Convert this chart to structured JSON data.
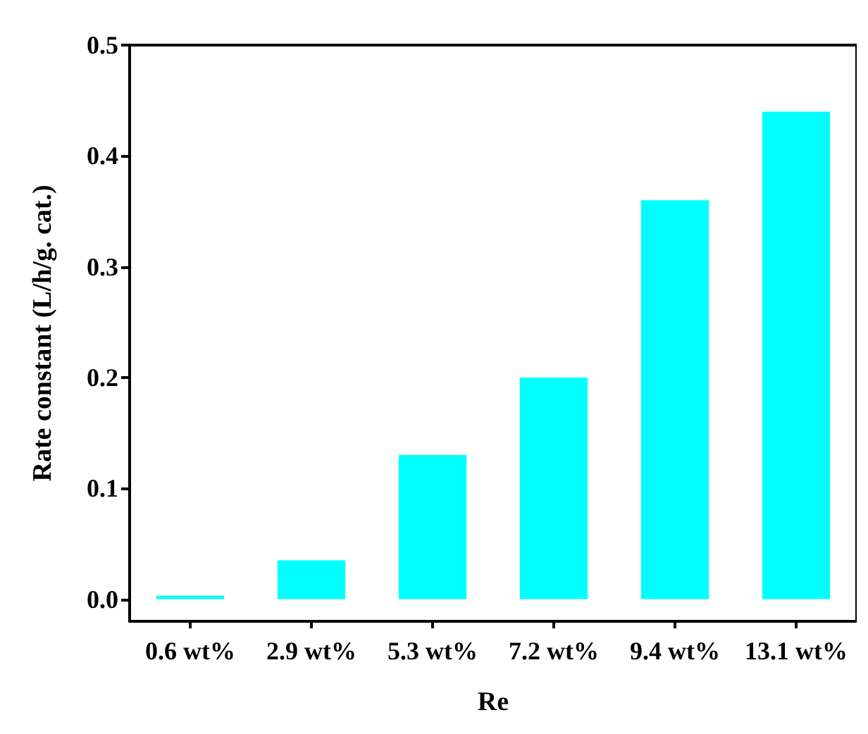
{
  "chart_data": {
    "type": "bar",
    "xlabel": "Re",
    "ylabel": "Rate constant (L/h/g. cat.)",
    "categories": [
      "0.6 wt%",
      "2.9 wt%",
      "5.3 wt%",
      "7.2 wt%",
      "9.4 wt%",
      "13.1 wt%"
    ],
    "values": [
      0.003,
      0.035,
      0.13,
      0.2,
      0.36,
      0.44
    ],
    "color": "#00ffff",
    "ylim": [
      -0.02,
      0.5
    ],
    "yticks": [
      {
        "value": 0,
        "label": "0.0"
      },
      {
        "value": 0.1,
        "label": "0.1"
      },
      {
        "value": 0.2,
        "label": "0.2"
      },
      {
        "value": 0.3,
        "label": "0.3"
      },
      {
        "value": 0.4,
        "label": "0.4"
      },
      {
        "value": 0.5,
        "label": "0.5"
      }
    ],
    "grid": false
  }
}
